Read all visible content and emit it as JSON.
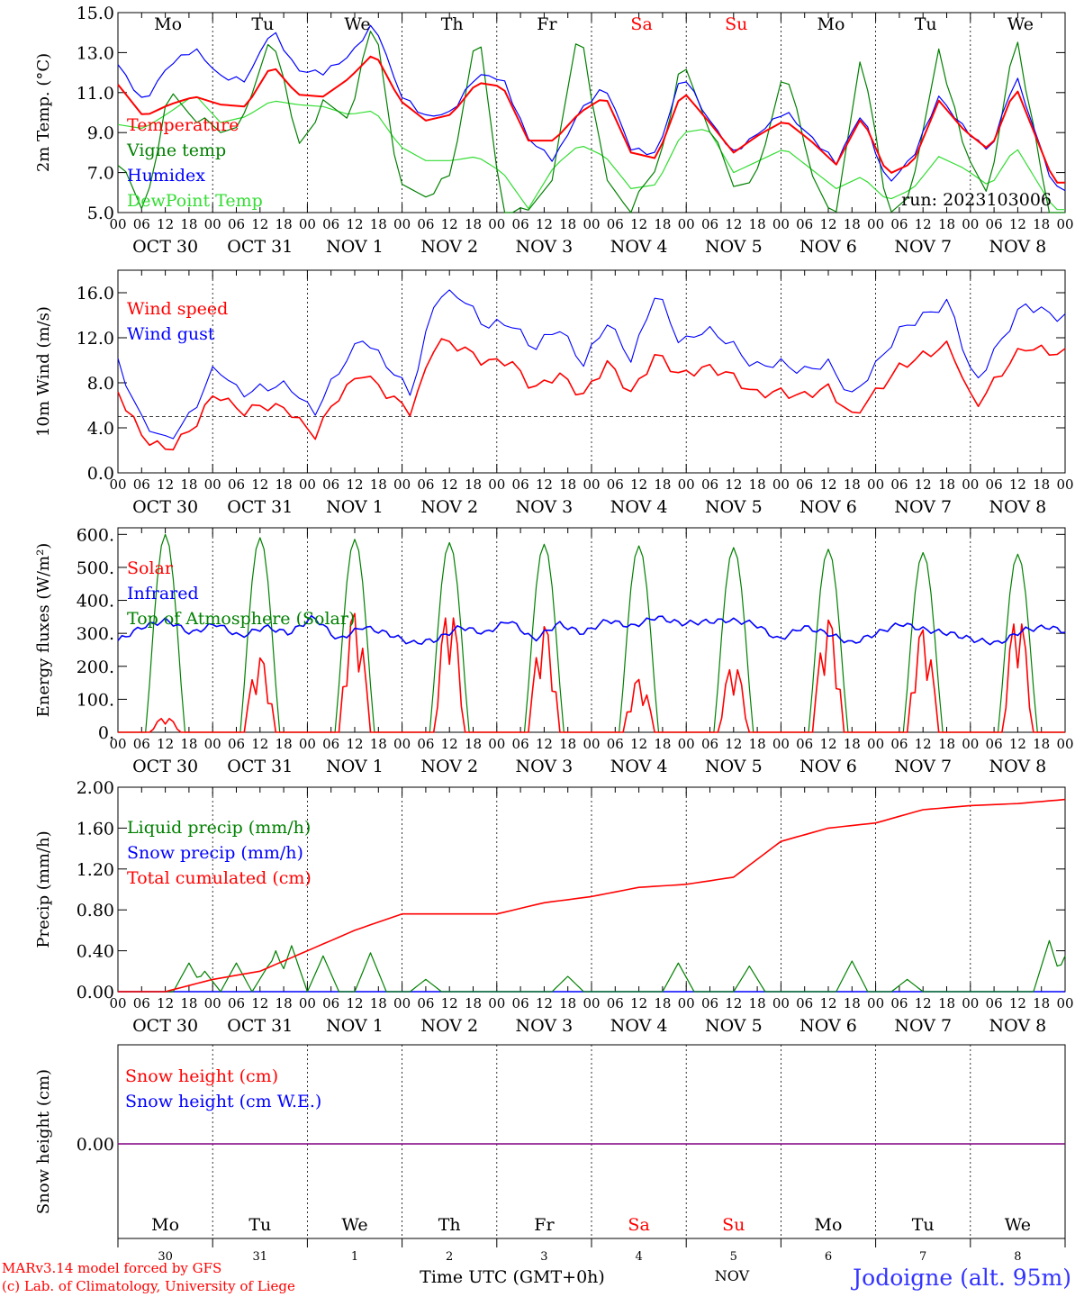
{
  "run_label": "run: 2023103006",
  "station": "Jodoigne (alt. 95m)",
  "credit_lines": [
    "MARv3.14 model forced by GFS",
    "(c) Lab. of Climatology, University of Liege"
  ],
  "bottom_axis": {
    "label": "Time UTC (GMT+0h)",
    "month": "NOV",
    "day_numbers": [
      "30",
      "31",
      "1",
      "2",
      "3",
      "4",
      "5",
      "6",
      "7",
      "8"
    ]
  },
  "weekdays": [
    "Mo",
    "Tu",
    "We",
    "Th",
    "Fr",
    "Sa",
    "Su",
    "Mo",
    "Tu",
    "We"
  ],
  "weekend_color": "#ff0000",
  "hour_labels": [
    "00",
    "06",
    "12",
    "18"
  ],
  "date_labels": [
    "OCT 30",
    "OCT 31",
    "NOV  1",
    "NOV  2",
    "NOV  3",
    "NOV  4",
    "NOV  5",
    "NOV  6",
    "NOV  7",
    "NOV  8"
  ],
  "colors": {
    "red": "#ff0000",
    "green": "#008000",
    "blue": "#0000ff",
    "light_green": "#33dd33",
    "purple": "#800080"
  },
  "chart_data": [
    {
      "type": "line",
      "ylabel": "2m Temp. (°C)",
      "ylim": [
        5.0,
        15.0
      ],
      "yticks": [
        "5.0",
        "7.0",
        "9.0",
        "11.0",
        "13.0",
        "15.0"
      ],
      "x_unit": "hours since Oct 30 00 UTC, 6-hourly",
      "series": [
        {
          "name": "Temperature",
          "color": "#ff0000",
          "values": [
            11.4,
            9.8,
            10.4,
            10.8,
            10.4,
            10.3,
            12.4,
            10.9,
            10.8,
            11.7,
            13.0,
            10.6,
            9.6,
            9.9,
            11.5,
            11.3,
            8.6,
            8.6,
            10.0,
            10.8,
            8.0,
            7.7,
            11.1,
            9.6,
            8.0,
            8.9,
            9.6,
            8.6,
            7.4,
            9.8,
            6.9,
            7.5,
            10.6,
            9.1,
            8.1,
            11.3,
            8.1
          ]
        },
        {
          "name": "Vigne temp",
          "color": "#008000",
          "values": [
            7.6,
            5.0,
            11.0,
            9.8,
            9.0,
            9.8,
            14.2,
            8.3,
            10.4,
            9.8,
            14.7,
            6.2,
            5.9,
            6.8,
            14.5,
            5.0,
            5.0,
            7.0,
            14.6,
            6.6,
            5.2,
            7.2,
            12.5,
            9.5,
            6.3,
            7.0,
            12.5,
            7.0,
            4.8,
            13.3,
            4.8,
            6.3,
            13.3,
            8.0,
            6.0,
            14.2,
            6.9
          ]
        },
        {
          "name": "Humidex",
          "color": "#0000ff",
          "values": [
            12.4,
            10.5,
            12.4,
            13.2,
            11.8,
            11.6,
            14.2,
            12.1,
            12.0,
            12.8,
            14.5,
            10.9,
            9.8,
            10.0,
            11.9,
            11.7,
            8.7,
            7.6,
            10.1,
            11.3,
            8.2,
            7.9,
            12.0,
            9.7,
            8.0,
            9.0,
            10.1,
            8.8,
            7.5,
            10.0,
            6.4,
            7.8,
            10.8,
            9.2,
            8.0,
            11.9,
            8.1
          ]
        },
        {
          "name": "DewPoint Temp",
          "color": "#33dd33",
          "values": [
            9.4,
            9.2,
            10.0,
            10.9,
            9.5,
            9.8,
            10.6,
            10.4,
            10.3,
            9.9,
            10.1,
            8.3,
            7.6,
            7.6,
            7.8,
            7.0,
            5.2,
            7.3,
            8.4,
            7.8,
            6.2,
            6.4,
            9.0,
            9.2,
            7.0,
            7.6,
            8.2,
            7.2,
            6.2,
            6.8,
            5.6,
            6.2,
            7.8,
            7.2,
            6.3,
            8.3,
            6.2
          ]
        }
      ]
    },
    {
      "type": "line",
      "ylabel": "10m Wind (m/s)",
      "ylim": [
        0.0,
        18.0
      ],
      "yticks": [
        "0.0",
        "4.0",
        "8.0",
        "12.0",
        "16.0"
      ],
      "reference_line": 5.0,
      "series": [
        {
          "name": "Wind speed",
          "color": "#ff0000",
          "values": [
            7.2,
            3.2,
            2.0,
            3.8,
            7.2,
            5.4,
            6.0,
            5.6,
            3.2,
            6.8,
            8.9,
            7.0,
            5.4,
            11.8,
            11.2,
            9.8,
            10.0,
            7.4,
            8.8,
            6.8,
            9.8,
            7.0,
            10.6,
            8.6,
            9.4,
            8.8,
            7.0,
            7.2,
            6.8,
            7.6,
            5.0,
            7.2,
            9.5,
            10.5,
            11.4,
            5.8,
            8.6,
            11.2,
            10.8
          ]
        },
        {
          "name": "Wind gust",
          "color": "#0000ff",
          "values": [
            9.8,
            4.6,
            2.8,
            5.2,
            9.6,
            7.0,
            7.6,
            7.8,
            5.2,
            9.0,
            12.0,
            9.6,
            7.0,
            15.8,
            15.8,
            13.0,
            13.4,
            11.0,
            13.0,
            9.6,
            13.4,
            10.0,
            16.2,
            11.4,
            12.8,
            11.6,
            9.4,
            9.8,
            9.0,
            9.8,
            6.8,
            9.6,
            12.8,
            14.0,
            15.2,
            7.8,
            11.4,
            15.0,
            14.2
          ]
        }
      ]
    },
    {
      "type": "line",
      "ylabel": "Energy fluxes (W/m²)",
      "ylim": [
        0,
        620
      ],
      "yticks": [
        "0.",
        "100.",
        "200.",
        "300.",
        "400.",
        "500.",
        "600."
      ],
      "series": [
        {
          "name": "Solar",
          "color": "#ff0000",
          "peaks": [
            45,
            225,
            360,
            375,
            320,
            160,
            205,
            340,
            310,
            355
          ]
        },
        {
          "name": "Infrared",
          "color": "#0000ff",
          "values": [
            278,
            320,
            340,
            300,
            330,
            290,
            320,
            300,
            350,
            280,
            320,
            300,
            270,
            280,
            320,
            300,
            340,
            280,
            330,
            300,
            340,
            320,
            350,
            330,
            335,
            340,
            330,
            280,
            320,
            300,
            270,
            300,
            330,
            310,
            300,
            280,
            270,
            310,
            320,
            300
          ]
        },
        {
          "name": "Top of Atmosphere (Solar)",
          "color": "#008000",
          "peaks": [
            600,
            590,
            585,
            575,
            570,
            565,
            560,
            555,
            545,
            540
          ]
        }
      ]
    },
    {
      "type": "line",
      "ylabel": "Precip (mm/h)",
      "ylim": [
        0.0,
        2.0
      ],
      "yticks": [
        "0.00",
        "0.40",
        "0.80",
        "1.20",
        "1.60",
        "2.00"
      ],
      "series": [
        {
          "name": "Liquid precip (mm/h)",
          "color": "#008000"
        },
        {
          "name": "Snow precip (mm/h)",
          "color": "#0000ff",
          "values": [
            0,
            0,
            0,
            0,
            0,
            0,
            0,
            0,
            0,
            0,
            0
          ]
        },
        {
          "name": "Total cumulated (cm)",
          "color": "#ff0000",
          "values": [
            0.0,
            0.0,
            0.12,
            0.2,
            0.4,
            0.6,
            0.76,
            0.76,
            0.76,
            0.87,
            0.93,
            1.02,
            1.05,
            1.12,
            1.47,
            1.6,
            1.65,
            1.78,
            1.82,
            1.84,
            1.88
          ]
        }
      ]
    },
    {
      "type": "line",
      "ylabel": "Snow height (cm)",
      "yticks": [
        "0.00"
      ],
      "series": [
        {
          "name": "Snow height (cm)",
          "color": "#ff0000",
          "values": [
            0,
            0
          ]
        },
        {
          "name": "Snow height (cm W.E.)",
          "color": "#0000ff",
          "values": [
            0,
            0
          ]
        }
      ]
    }
  ]
}
